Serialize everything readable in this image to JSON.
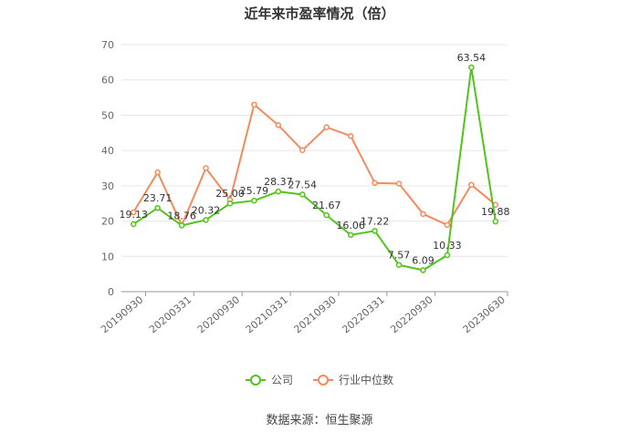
{
  "title": "近年来市盈率情况（倍）",
  "source": "数据来源：恒生聚源",
  "legend": [
    "公司",
    "行业中位数"
  ],
  "colors": {
    "company": "#52c41a",
    "industry": "#f58a5c",
    "grid": "#e6e6e6",
    "axis": "#999999"
  },
  "chart_data": {
    "type": "line",
    "title": "近年来市盈率情况（倍）",
    "ylim": [
      0,
      70
    ],
    "yticks": [
      0,
      10,
      20,
      30,
      40,
      50,
      60,
      70
    ],
    "xtick_labels": [
      "20190930",
      "20200331",
      "20200930",
      "20210331",
      "20210930",
      "20220331",
      "20220930",
      "20230630"
    ],
    "grid": true,
    "legend_position": "bottom",
    "x": [
      "20190930",
      "20191231",
      "20200331",
      "20200630",
      "20200930",
      "20201231",
      "20210331",
      "20210630",
      "20210930",
      "20211231",
      "20220331",
      "20220630",
      "20220930",
      "20221231",
      "20230331",
      "20230630"
    ],
    "series": [
      {
        "name": "公司",
        "values": [
          19.13,
          23.71,
          18.76,
          20.32,
          25.0,
          25.79,
          28.37,
          27.54,
          21.67,
          16.06,
          17.22,
          7.57,
          6.09,
          10.33,
          63.54,
          19.88
        ],
        "labels": [
          "19.13",
          "23.71",
          "18.76",
          "20.32",
          "25.00",
          "25.79",
          "28.37",
          "27.54",
          "21.67",
          "16.06",
          "17.22",
          "7.57",
          "6.09",
          "10.33",
          "63.54",
          "19.88"
        ]
      },
      {
        "name": "行业中位数",
        "values": [
          22.5,
          33.8,
          18.8,
          35.0,
          26.0,
          53.0,
          47.2,
          40.1,
          46.6,
          44.1,
          30.8,
          30.6,
          22.0,
          18.9,
          30.3,
          24.6
        ]
      }
    ]
  }
}
